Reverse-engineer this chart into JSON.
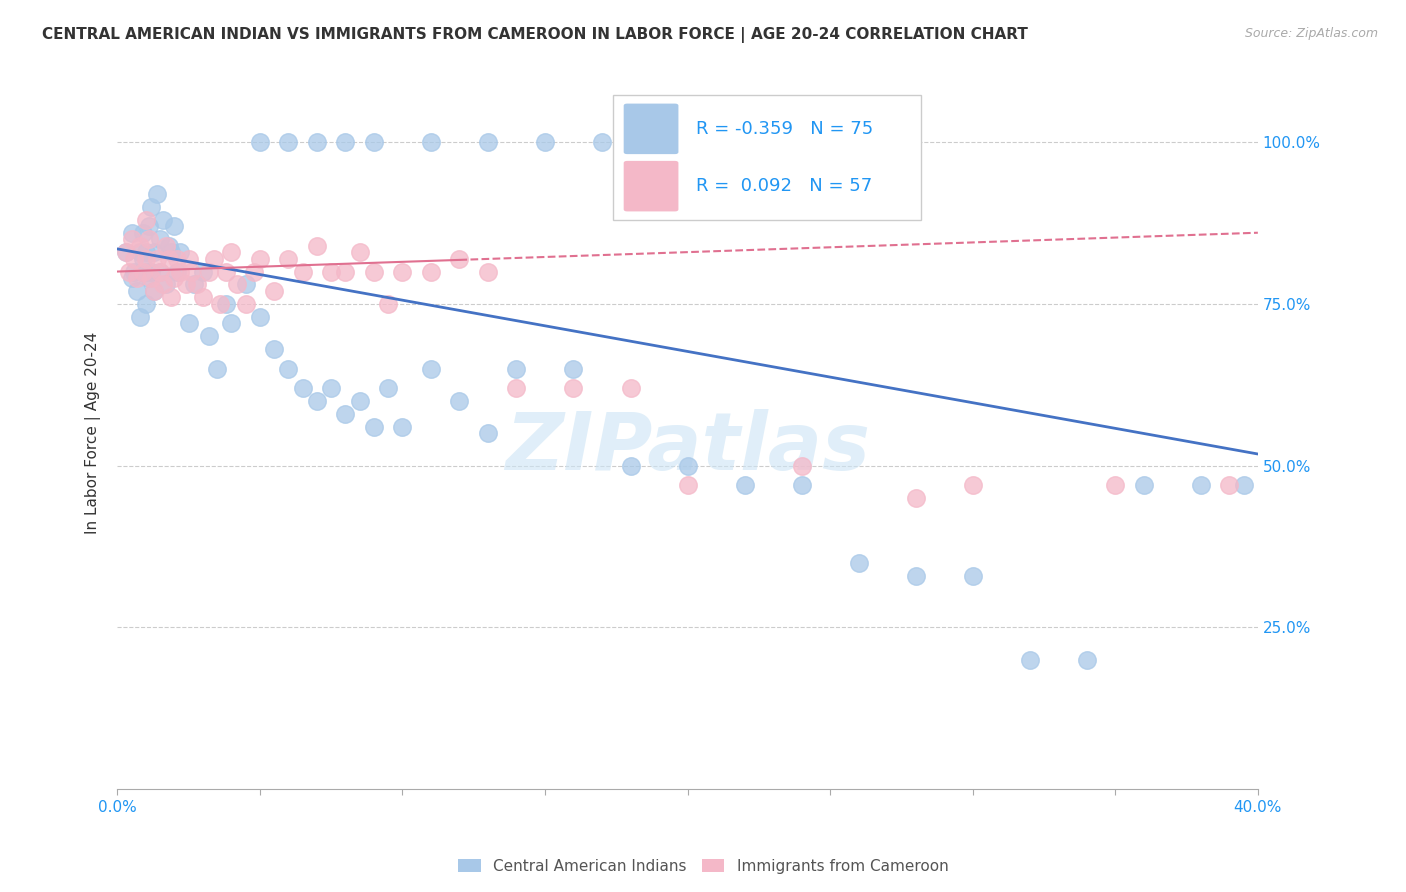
{
  "title": "CENTRAL AMERICAN INDIAN VS IMMIGRANTS FROM CAMEROON IN LABOR FORCE | AGE 20-24 CORRELATION CHART",
  "source": "Source: ZipAtlas.com",
  "ylabel": "In Labor Force | Age 20-24",
  "ytick_labels": [
    "100.0%",
    "75.0%",
    "50.0%",
    "25.0%"
  ],
  "ytick_values": [
    1.0,
    0.75,
    0.5,
    0.25
  ],
  "xlim": [
    0.0,
    0.4
  ],
  "ylim": [
    0.0,
    1.1
  ],
  "blue_R": -0.359,
  "blue_N": 75,
  "pink_R": 0.092,
  "pink_N": 57,
  "blue_color": "#a8c8e8",
  "pink_color": "#f4b8c8",
  "blue_line_color": "#4472c4",
  "pink_line_color": "#e07090",
  "legend_label_blue": "Central American Indians",
  "legend_label_pink": "Immigrants from Cameroon",
  "watermark": "ZIPatlas",
  "blue_line_y0": 0.835,
  "blue_line_y1": 0.518,
  "pink_line_y0": 0.8,
  "pink_line_y1": 0.86,
  "blue_scatter_x": [
    0.003,
    0.005,
    0.005,
    0.006,
    0.007,
    0.008,
    0.008,
    0.009,
    0.009,
    0.01,
    0.01,
    0.01,
    0.011,
    0.011,
    0.012,
    0.012,
    0.013,
    0.013,
    0.014,
    0.015,
    0.015,
    0.016,
    0.017,
    0.018,
    0.019,
    0.02,
    0.021,
    0.022,
    0.025,
    0.027,
    0.03,
    0.032,
    0.035,
    0.038,
    0.04,
    0.045,
    0.05,
    0.055,
    0.06,
    0.065,
    0.07,
    0.075,
    0.08,
    0.085,
    0.09,
    0.095,
    0.1,
    0.11,
    0.12,
    0.13,
    0.14,
    0.16,
    0.18,
    0.2,
    0.22,
    0.24,
    0.26,
    0.28,
    0.3,
    0.32,
    0.34,
    0.36,
    0.38,
    0.395,
    0.05,
    0.06,
    0.07,
    0.08,
    0.09,
    0.11,
    0.13,
    0.15,
    0.17,
    0.19
  ],
  "blue_scatter_y": [
    0.83,
    0.79,
    0.86,
    0.8,
    0.77,
    0.83,
    0.73,
    0.82,
    0.86,
    0.8,
    0.83,
    0.75,
    0.79,
    0.87,
    0.8,
    0.9,
    0.83,
    0.77,
    0.92,
    0.85,
    0.8,
    0.88,
    0.78,
    0.84,
    0.83,
    0.87,
    0.8,
    0.83,
    0.72,
    0.78,
    0.8,
    0.7,
    0.65,
    0.75,
    0.72,
    0.78,
    0.73,
    0.68,
    0.65,
    0.62,
    0.6,
    0.62,
    0.58,
    0.6,
    0.56,
    0.62,
    0.56,
    0.65,
    0.6,
    0.55,
    0.65,
    0.65,
    0.5,
    0.5,
    0.47,
    0.47,
    0.35,
    0.33,
    0.33,
    0.2,
    0.2,
    0.47,
    0.47,
    0.47,
    1.0,
    1.0,
    1.0,
    1.0,
    1.0,
    1.0,
    1.0,
    1.0,
    1.0,
    1.0
  ],
  "pink_scatter_x": [
    0.003,
    0.004,
    0.005,
    0.006,
    0.007,
    0.008,
    0.009,
    0.01,
    0.01,
    0.011,
    0.012,
    0.013,
    0.014,
    0.015,
    0.016,
    0.017,
    0.018,
    0.019,
    0.02,
    0.021,
    0.022,
    0.024,
    0.025,
    0.026,
    0.028,
    0.03,
    0.032,
    0.034,
    0.036,
    0.038,
    0.04,
    0.042,
    0.045,
    0.048,
    0.05,
    0.055,
    0.06,
    0.065,
    0.07,
    0.075,
    0.08,
    0.085,
    0.09,
    0.095,
    0.1,
    0.11,
    0.12,
    0.13,
    0.14,
    0.16,
    0.18,
    0.2,
    0.24,
    0.28,
    0.3,
    0.35,
    0.39
  ],
  "pink_scatter_y": [
    0.83,
    0.8,
    0.85,
    0.82,
    0.79,
    0.84,
    0.8,
    0.82,
    0.88,
    0.85,
    0.79,
    0.77,
    0.82,
    0.8,
    0.78,
    0.84,
    0.82,
    0.76,
    0.79,
    0.82,
    0.8,
    0.78,
    0.82,
    0.8,
    0.78,
    0.76,
    0.8,
    0.82,
    0.75,
    0.8,
    0.83,
    0.78,
    0.75,
    0.8,
    0.82,
    0.77,
    0.82,
    0.8,
    0.84,
    0.8,
    0.8,
    0.83,
    0.8,
    0.75,
    0.8,
    0.8,
    0.82,
    0.8,
    0.62,
    0.62,
    0.62,
    0.47,
    0.5,
    0.45,
    0.47,
    0.47,
    0.47
  ]
}
